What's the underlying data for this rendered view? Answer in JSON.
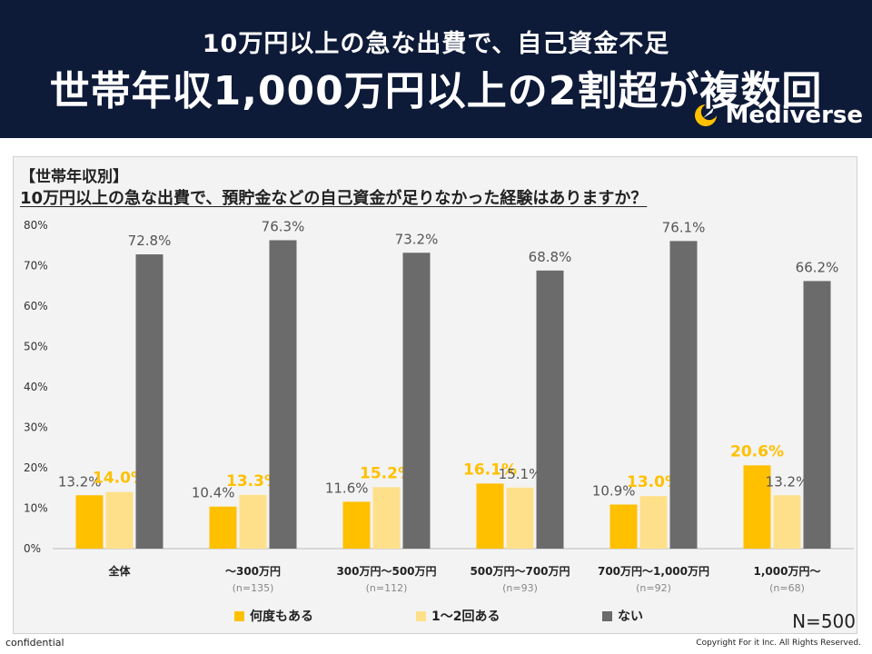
{
  "header": {
    "line1": "10万円以上の急な出費で、自己資金不足",
    "line2": "世帯年収1,000万円以上の2割超が複数回",
    "brand": "Mediverse"
  },
  "subtitle": {
    "line1": "【世帯年収別】",
    "line2": "10万円以上の急な出費で、預貯金などの自己資金が足りなかった経験はありますか？"
  },
  "colors": {
    "header_bg": "#0d1a38",
    "series_multiple": "#ffc000",
    "series_once_twice": "#ffe08a",
    "series_none": "#6b6b6b",
    "highlight_label": "#ffc000"
  },
  "chart_data": {
    "type": "bar",
    "categories": [
      "全体",
      "～300万円",
      "300万円～500万円",
      "500万円～700万円",
      "700万円～1,000万円",
      "1,000万円～"
    ],
    "category_n": [
      "",
      "(n=135)",
      "(n=112)",
      "(n=93)",
      "(n=92)",
      "(n=68)"
    ],
    "series": [
      {
        "name": "何度もある",
        "values": [
          13.2,
          10.4,
          11.6,
          16.1,
          10.9,
          20.6
        ]
      },
      {
        "name": "1～2回ある",
        "values": [
          14.0,
          13.3,
          15.2,
          15.1,
          13.0,
          13.2
        ]
      },
      {
        "name": "ない",
        "values": [
          72.8,
          76.3,
          73.2,
          68.8,
          76.1,
          66.2
        ]
      }
    ],
    "value_labels": [
      [
        "13.2%",
        "14.0%",
        "72.8%"
      ],
      [
        "10.4%",
        "13.3%",
        "76.3%"
      ],
      [
        "11.6%",
        "15.2%",
        "73.2%"
      ],
      [
        "16.1%",
        "15.1%",
        "68.8%"
      ],
      [
        "10.9%",
        "13.0%",
        "76.1%"
      ],
      [
        "20.6%",
        "13.2%",
        "66.2%"
      ]
    ],
    "highlighted_labels": [
      [
        0,
        1
      ],
      [
        1,
        1
      ],
      [
        2,
        1
      ],
      [
        3,
        0
      ],
      [
        4,
        1
      ],
      [
        5,
        0
      ]
    ],
    "y_ticks": [
      "0%",
      "10%",
      "20%",
      "30%",
      "40%",
      "50%",
      "60%",
      "70%",
      "80%"
    ],
    "ylim": [
      0,
      80
    ],
    "grid": false,
    "legend_position": "bottom"
  },
  "legend": {
    "multiple": "何度もある",
    "once_twice": "1～2回ある",
    "none": "ない"
  },
  "sample_size": "N=500",
  "footer": {
    "left": "confidential",
    "right": "Copyright For it Inc. All Rights Reserved."
  }
}
